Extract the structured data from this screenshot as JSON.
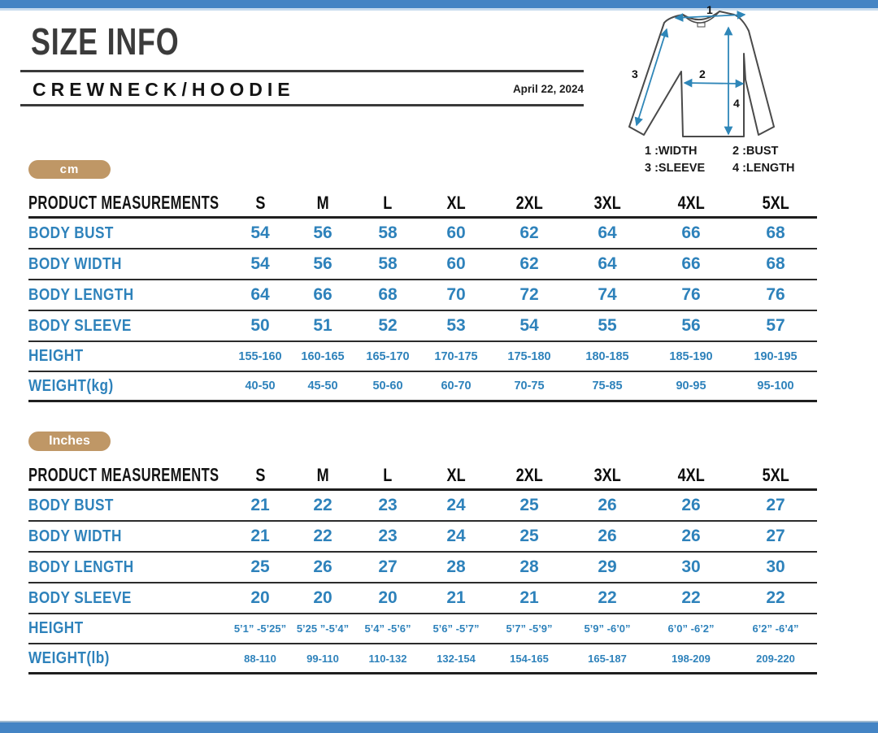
{
  "page": {
    "title": "SIZE INFO",
    "subtitle": "CREWNECK/HOODIE",
    "date": "April 22, 2024"
  },
  "diagram": {
    "legend": [
      "1 :WIDTH",
      "2 :BUST",
      "3 :SLEEVE",
      "4 :LENGTH"
    ],
    "arrow_labels": [
      "1",
      "2",
      "3",
      "4"
    ]
  },
  "sizes": [
    "S",
    "M",
    "L",
    "XL",
    "2XL",
    "3XL",
    "4XL",
    "5XL"
  ],
  "tables": [
    {
      "unit_badge": "cm",
      "header_label": "PRODUCT MEASUREMENTS",
      "rows": [
        {
          "label": "BODY BUST",
          "size": "large",
          "values": [
            "54",
            "56",
            "58",
            "60",
            "62",
            "64",
            "66",
            "68"
          ]
        },
        {
          "label": "BODY WIDTH",
          "size": "large",
          "values": [
            "54",
            "56",
            "58",
            "60",
            "62",
            "64",
            "66",
            "68"
          ]
        },
        {
          "label": "BODY LENGTH",
          "size": "large",
          "values": [
            "64",
            "66",
            "68",
            "70",
            "72",
            "74",
            "76",
            "76"
          ]
        },
        {
          "label": "BODY SLEEVE",
          "size": "large",
          "values": [
            "50",
            "51",
            "52",
            "53",
            "54",
            "55",
            "56",
            "57"
          ]
        },
        {
          "label": "HEIGHT",
          "size": "small",
          "values": [
            "155-160",
            "160-165",
            "165-170",
            "170-175",
            "175-180",
            "180-185",
            "185-190",
            "190-195"
          ]
        },
        {
          "label": "WEIGHT(kg)",
          "size": "small",
          "values": [
            "40-50",
            "45-50",
            "50-60",
            "60-70",
            "70-75",
            "75-85",
            "90-95",
            "95-100"
          ]
        }
      ]
    },
    {
      "unit_badge": "Inches",
      "header_label": "PRODUCT MEASUREMENTS",
      "rows": [
        {
          "label": "BODY BUST",
          "size": "large",
          "values": [
            "21",
            "22",
            "23",
            "24",
            "25",
            "26",
            "26",
            "27"
          ]
        },
        {
          "label": "BODY WIDTH",
          "size": "large",
          "values": [
            "21",
            "22",
            "23",
            "24",
            "25",
            "26",
            "26",
            "27"
          ]
        },
        {
          "label": "BODY LENGTH",
          "size": "large",
          "values": [
            "25",
            "26",
            "27",
            "28",
            "28",
            "29",
            "30",
            "30"
          ]
        },
        {
          "label": "BODY SLEEVE",
          "size": "large",
          "values": [
            "20",
            "20",
            "20",
            "21",
            "21",
            "22",
            "22",
            "22"
          ]
        },
        {
          "label": "HEIGHT",
          "size": "small",
          "values": [
            "5’1” -5’25”",
            "5’25 ”-5’4”",
            "5’4” -5’6”",
            "5’6” -5’7”",
            "5’7” -5’9”",
            "5’9” -6’0”",
            "6’0” -6’2”",
            "6’2” -6’4”"
          ]
        },
        {
          "label": "WEIGHT(lb)",
          "size": "small",
          "values": [
            "88-110",
            "99-110",
            "110-132",
            "132-154",
            "154-165",
            "165-187",
            "198-209",
            "209-220"
          ]
        }
      ]
    }
  ],
  "colors": {
    "bar_blue": "#4484c4",
    "accent_blue": "#2e82bb",
    "badge_tan": "#bf9766",
    "garment_outline": "#4a4a4a",
    "arrow_blue": "#2e86b8"
  }
}
